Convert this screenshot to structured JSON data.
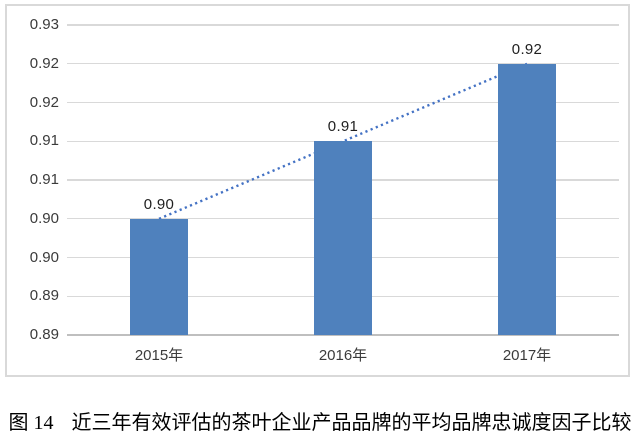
{
  "chart_data": {
    "type": "bar",
    "title": "",
    "xlabel": "",
    "ylabel": "",
    "categories": [
      "2015年",
      "2016年",
      "2017年"
    ],
    "values": [
      0.9,
      0.91,
      0.92
    ],
    "data_labels": [
      "0.90",
      "0.91",
      "0.92"
    ],
    "ylim": [
      0.885,
      0.925
    ],
    "y_tick_step": 0.005,
    "y_tick_labels_top_to_bottom": [
      "0.93",
      "0.92",
      "0.92",
      "0.91",
      "0.91",
      "0.90",
      "0.90",
      "0.89",
      "0.89"
    ],
    "grid": true,
    "legend": "none",
    "bar_color": "#4f81bd",
    "trendline": {
      "type": "linear",
      "style": "dotted",
      "color": "#4472c4",
      "from_value": 0.9,
      "to_value": 0.92
    }
  },
  "caption": {
    "prefix": "图 14",
    "text": "近三年有效评估的茶叶企业产品品牌的平均品牌忠诚度因子比较"
  }
}
